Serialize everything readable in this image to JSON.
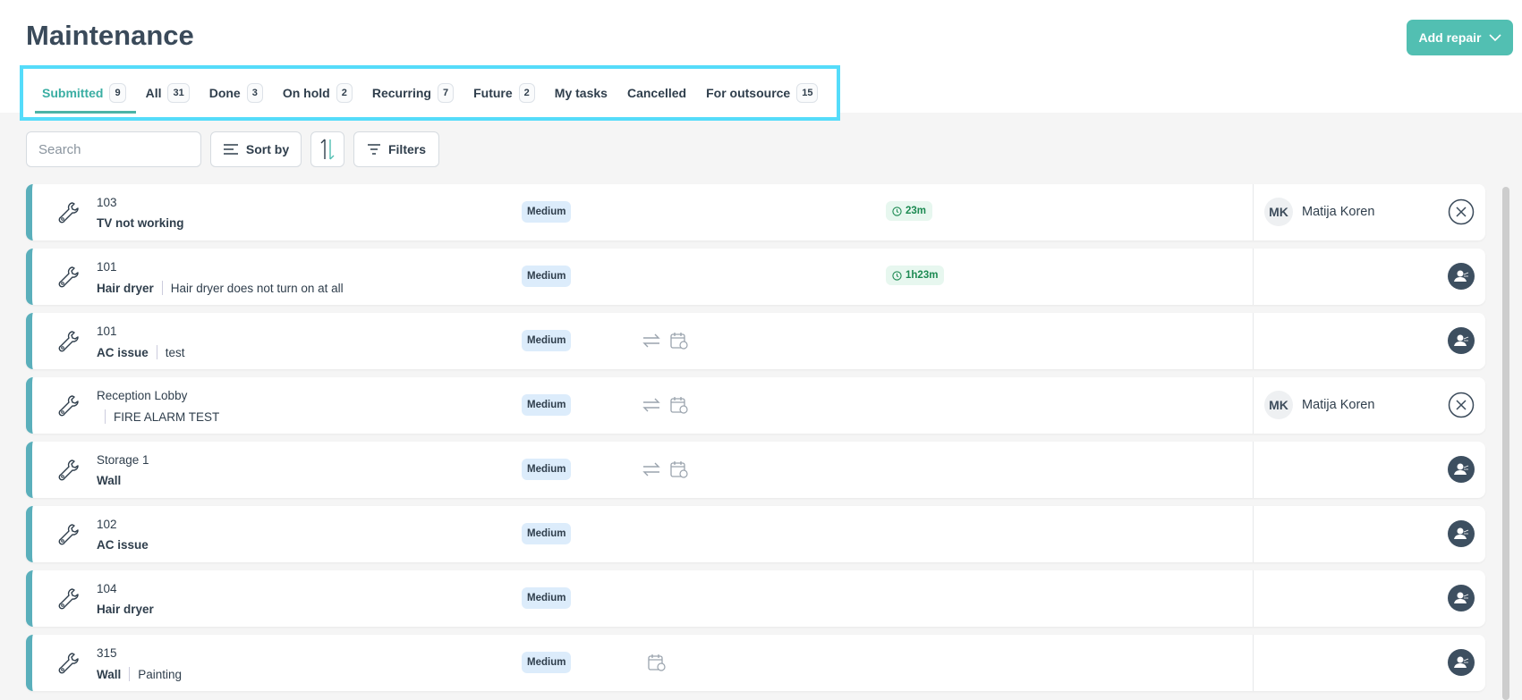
{
  "header": {
    "title": "Maintenance",
    "add_repair_label": "Add repair"
  },
  "tabs": [
    {
      "label": "Submitted",
      "count": "9",
      "active": true
    },
    {
      "label": "All",
      "count": "31"
    },
    {
      "label": "Done",
      "count": "3"
    },
    {
      "label": "On hold",
      "count": "2"
    },
    {
      "label": "Recurring",
      "count": "7"
    },
    {
      "label": "Future",
      "count": "2"
    },
    {
      "label": "My tasks",
      "count": null
    },
    {
      "label": "Cancelled",
      "count": null
    },
    {
      "label": "For outsource",
      "count": "15"
    }
  ],
  "toolbar": {
    "search_placeholder": "Search",
    "sort_label": "Sort by",
    "filters_label": "Filters"
  },
  "colors": {
    "accent": "#52bfb2",
    "row_marker": "#5aafbb",
    "priority_bg": "#dcecfb",
    "timer_text": "#1c8a52"
  },
  "rows": [
    {
      "location": "103",
      "title": "TV not working",
      "description": "",
      "priority": "Medium",
      "recurring": false,
      "scheduled": false,
      "timer": "23m",
      "assignee_initials": "MK",
      "assignee": "Matija Koren",
      "action": "unassign-icon"
    },
    {
      "location": "101",
      "title": "Hair dryer",
      "description": "Hair dryer does not turn on at all",
      "priority": "Medium",
      "recurring": false,
      "scheduled": false,
      "timer": "1h23m",
      "assignee_initials": "",
      "assignee": "",
      "action": "assign-user-icon"
    },
    {
      "location": "101",
      "title": "AC issue",
      "description": "test",
      "priority": "Medium",
      "recurring": true,
      "scheduled": true,
      "timer": "",
      "assignee_initials": "",
      "assignee": "",
      "action": "assign-user-icon"
    },
    {
      "location": "Reception Lobby",
      "title": "",
      "description": "FIRE ALARM TEST",
      "priority": "Medium",
      "recurring": true,
      "scheduled": true,
      "timer": "",
      "assignee_initials": "MK",
      "assignee": "Matija Koren",
      "action": "unassign-icon"
    },
    {
      "location": "Storage 1",
      "title": "Wall",
      "description": "",
      "priority": "Medium",
      "recurring": true,
      "scheduled": true,
      "timer": "",
      "assignee_initials": "",
      "assignee": "",
      "action": "assign-user-icon"
    },
    {
      "location": "102",
      "title": "AC issue",
      "description": "",
      "priority": "Medium",
      "recurring": false,
      "scheduled": false,
      "timer": "",
      "assignee_initials": "",
      "assignee": "",
      "action": "assign-user-icon"
    },
    {
      "location": "104",
      "title": "Hair dryer",
      "description": "",
      "priority": "Medium",
      "recurring": false,
      "scheduled": false,
      "timer": "",
      "assignee_initials": "",
      "assignee": "",
      "action": "assign-user-icon"
    },
    {
      "location": "315",
      "title": "Wall",
      "description": "Painting",
      "priority": "Medium",
      "recurring": false,
      "scheduled": true,
      "timer": "",
      "assignee_initials": "",
      "assignee": "",
      "action": "assign-user-icon"
    }
  ]
}
